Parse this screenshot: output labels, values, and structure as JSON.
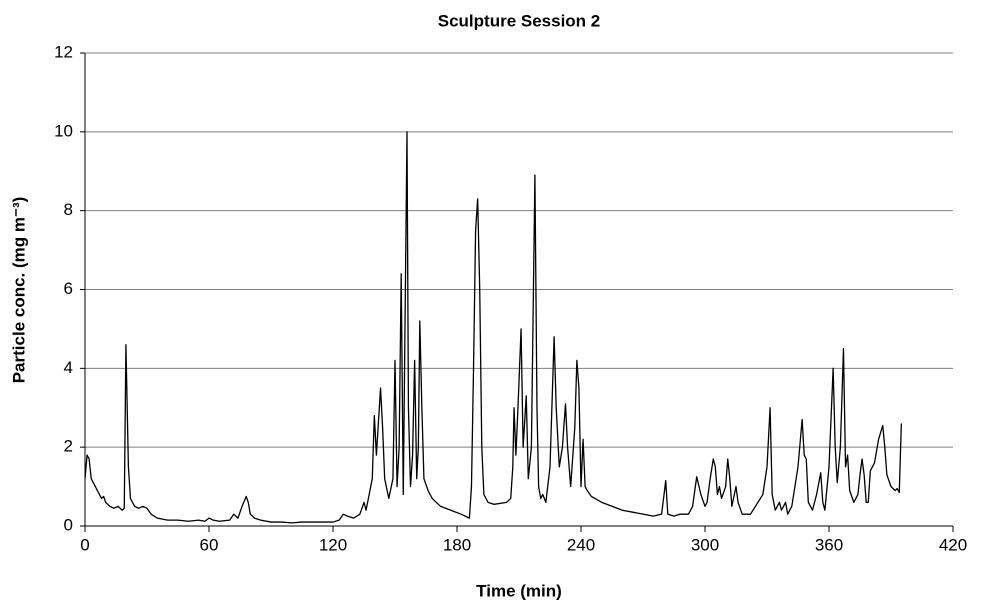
{
  "chart_data": {
    "type": "line",
    "title": "Sculpture Session 2",
    "x_label": "Time (min)",
    "y_label": "Particle conc. (mg m⁻³)",
    "xlim": [
      0,
      420
    ],
    "xticks": [
      0,
      60,
      120,
      180,
      240,
      300,
      360,
      420
    ],
    "ylim": [
      0,
      12
    ],
    "yticks": [
      0,
      2,
      4,
      6,
      8,
      10,
      12
    ],
    "grid": true,
    "series": [
      {
        "name": "Particle conc.",
        "color": "#000000",
        "x": [
          0,
          1,
          2,
          3,
          5,
          6,
          8,
          9,
          10,
          12,
          14,
          16,
          18,
          19,
          19.8,
          21,
          22,
          24,
          26,
          28,
          30,
          32,
          35,
          40,
          45,
          50,
          55,
          58,
          60,
          62,
          65,
          70,
          72,
          74,
          76,
          78,
          79,
          80,
          82,
          85,
          90,
          95,
          100,
          105,
          110,
          115,
          120,
          123,
          125,
          127,
          130,
          133,
          135,
          136,
          139,
          140,
          141,
          143,
          144,
          145,
          147,
          149,
          150,
          151,
          152,
          153,
          154,
          155.8,
          156.5,
          157.5,
          158.5,
          159.5,
          160.5,
          161.3,
          162,
          163,
          164,
          166,
          168,
          172,
          177,
          182,
          186,
          187,
          188,
          189,
          190,
          191,
          192,
          193,
          195,
          198,
          204,
          206,
          207,
          207.6,
          208.5,
          209.5,
          211,
          212,
          213.5,
          214.5,
          216,
          217.7,
          218.7,
          219.5,
          220.5,
          221.5,
          223,
          225,
          227,
          228,
          229.5,
          231,
          232.5,
          233.5,
          235,
          237,
          238,
          239,
          240,
          241,
          242,
          243,
          245,
          250,
          255,
          260,
          265,
          270,
          275,
          279,
          281,
          282,
          285,
          288,
          292,
          294,
          296,
          298,
          300,
          301,
          302.5,
          304,
          305,
          306,
          307,
          308,
          310,
          311,
          312,
          313,
          315,
          316,
          318,
          322,
          328,
          330,
          331.5,
          332.5,
          334,
          336,
          337,
          339,
          340,
          342,
          345,
          347,
          348,
          349,
          350,
          352,
          354,
          356,
          357,
          358,
          360,
          362,
          363,
          364,
          365.5,
          367,
          368,
          369,
          370,
          372,
          374,
          375,
          376,
          377,
          378,
          379,
          380,
          382,
          384,
          386,
          387,
          388,
          390,
          392,
          393,
          394,
          395
        ],
        "values": [
          1.2,
          1.8,
          1.7,
          1.2,
          1.0,
          0.9,
          0.7,
          0.75,
          0.6,
          0.5,
          0.45,
          0.5,
          0.4,
          0.45,
          4.6,
          1.5,
          0.7,
          0.5,
          0.45,
          0.5,
          0.45,
          0.3,
          0.2,
          0.15,
          0.15,
          0.12,
          0.15,
          0.12,
          0.2,
          0.15,
          0.12,
          0.15,
          0.3,
          0.2,
          0.5,
          0.75,
          0.6,
          0.3,
          0.2,
          0.15,
          0.1,
          0.1,
          0.08,
          0.1,
          0.1,
          0.1,
          0.1,
          0.15,
          0.3,
          0.25,
          0.2,
          0.3,
          0.6,
          0.4,
          1.2,
          2.8,
          1.8,
          3.5,
          2.5,
          1.2,
          0.7,
          1.2,
          4.2,
          1.0,
          2.0,
          6.4,
          0.8,
          10.0,
          3.0,
          1.0,
          1.8,
          4.2,
          1.2,
          2.0,
          5.2,
          3.0,
          1.2,
          0.9,
          0.7,
          0.5,
          0.4,
          0.3,
          0.2,
          1.0,
          4.0,
          7.5,
          8.3,
          6.0,
          2.0,
          0.8,
          0.6,
          0.55,
          0.6,
          0.7,
          1.5,
          3.0,
          1.8,
          3.0,
          5.0,
          2.0,
          3.3,
          1.2,
          2.0,
          8.9,
          3.0,
          1.0,
          0.7,
          0.8,
          0.6,
          1.5,
          4.8,
          3.0,
          1.5,
          2.0,
          3.1,
          2.0,
          1.0,
          2.5,
          4.2,
          3.5,
          1.0,
          2.2,
          1.0,
          0.9,
          0.75,
          0.6,
          0.5,
          0.4,
          0.35,
          0.3,
          0.25,
          0.3,
          1.15,
          0.3,
          0.25,
          0.3,
          0.3,
          0.5,
          1.25,
          0.8,
          0.5,
          0.6,
          1.2,
          1.7,
          1.5,
          0.8,
          1.0,
          0.7,
          1.0,
          1.7,
          1.2,
          0.5,
          1.0,
          0.6,
          0.3,
          0.3,
          0.8,
          1.5,
          3.0,
          0.8,
          0.4,
          0.6,
          0.4,
          0.6,
          0.3,
          0.5,
          1.5,
          2.7,
          1.8,
          1.7,
          0.6,
          0.4,
          0.8,
          1.35,
          0.6,
          0.4,
          1.5,
          4.0,
          2.0,
          1.1,
          2.0,
          4.5,
          1.5,
          1.8,
          0.9,
          0.6,
          0.8,
          1.3,
          1.7,
          1.3,
          0.6,
          0.6,
          1.4,
          1.6,
          2.2,
          2.55,
          2.0,
          1.3,
          1.0,
          0.9,
          0.95,
          0.85,
          2.6
        ]
      }
    ]
  }
}
